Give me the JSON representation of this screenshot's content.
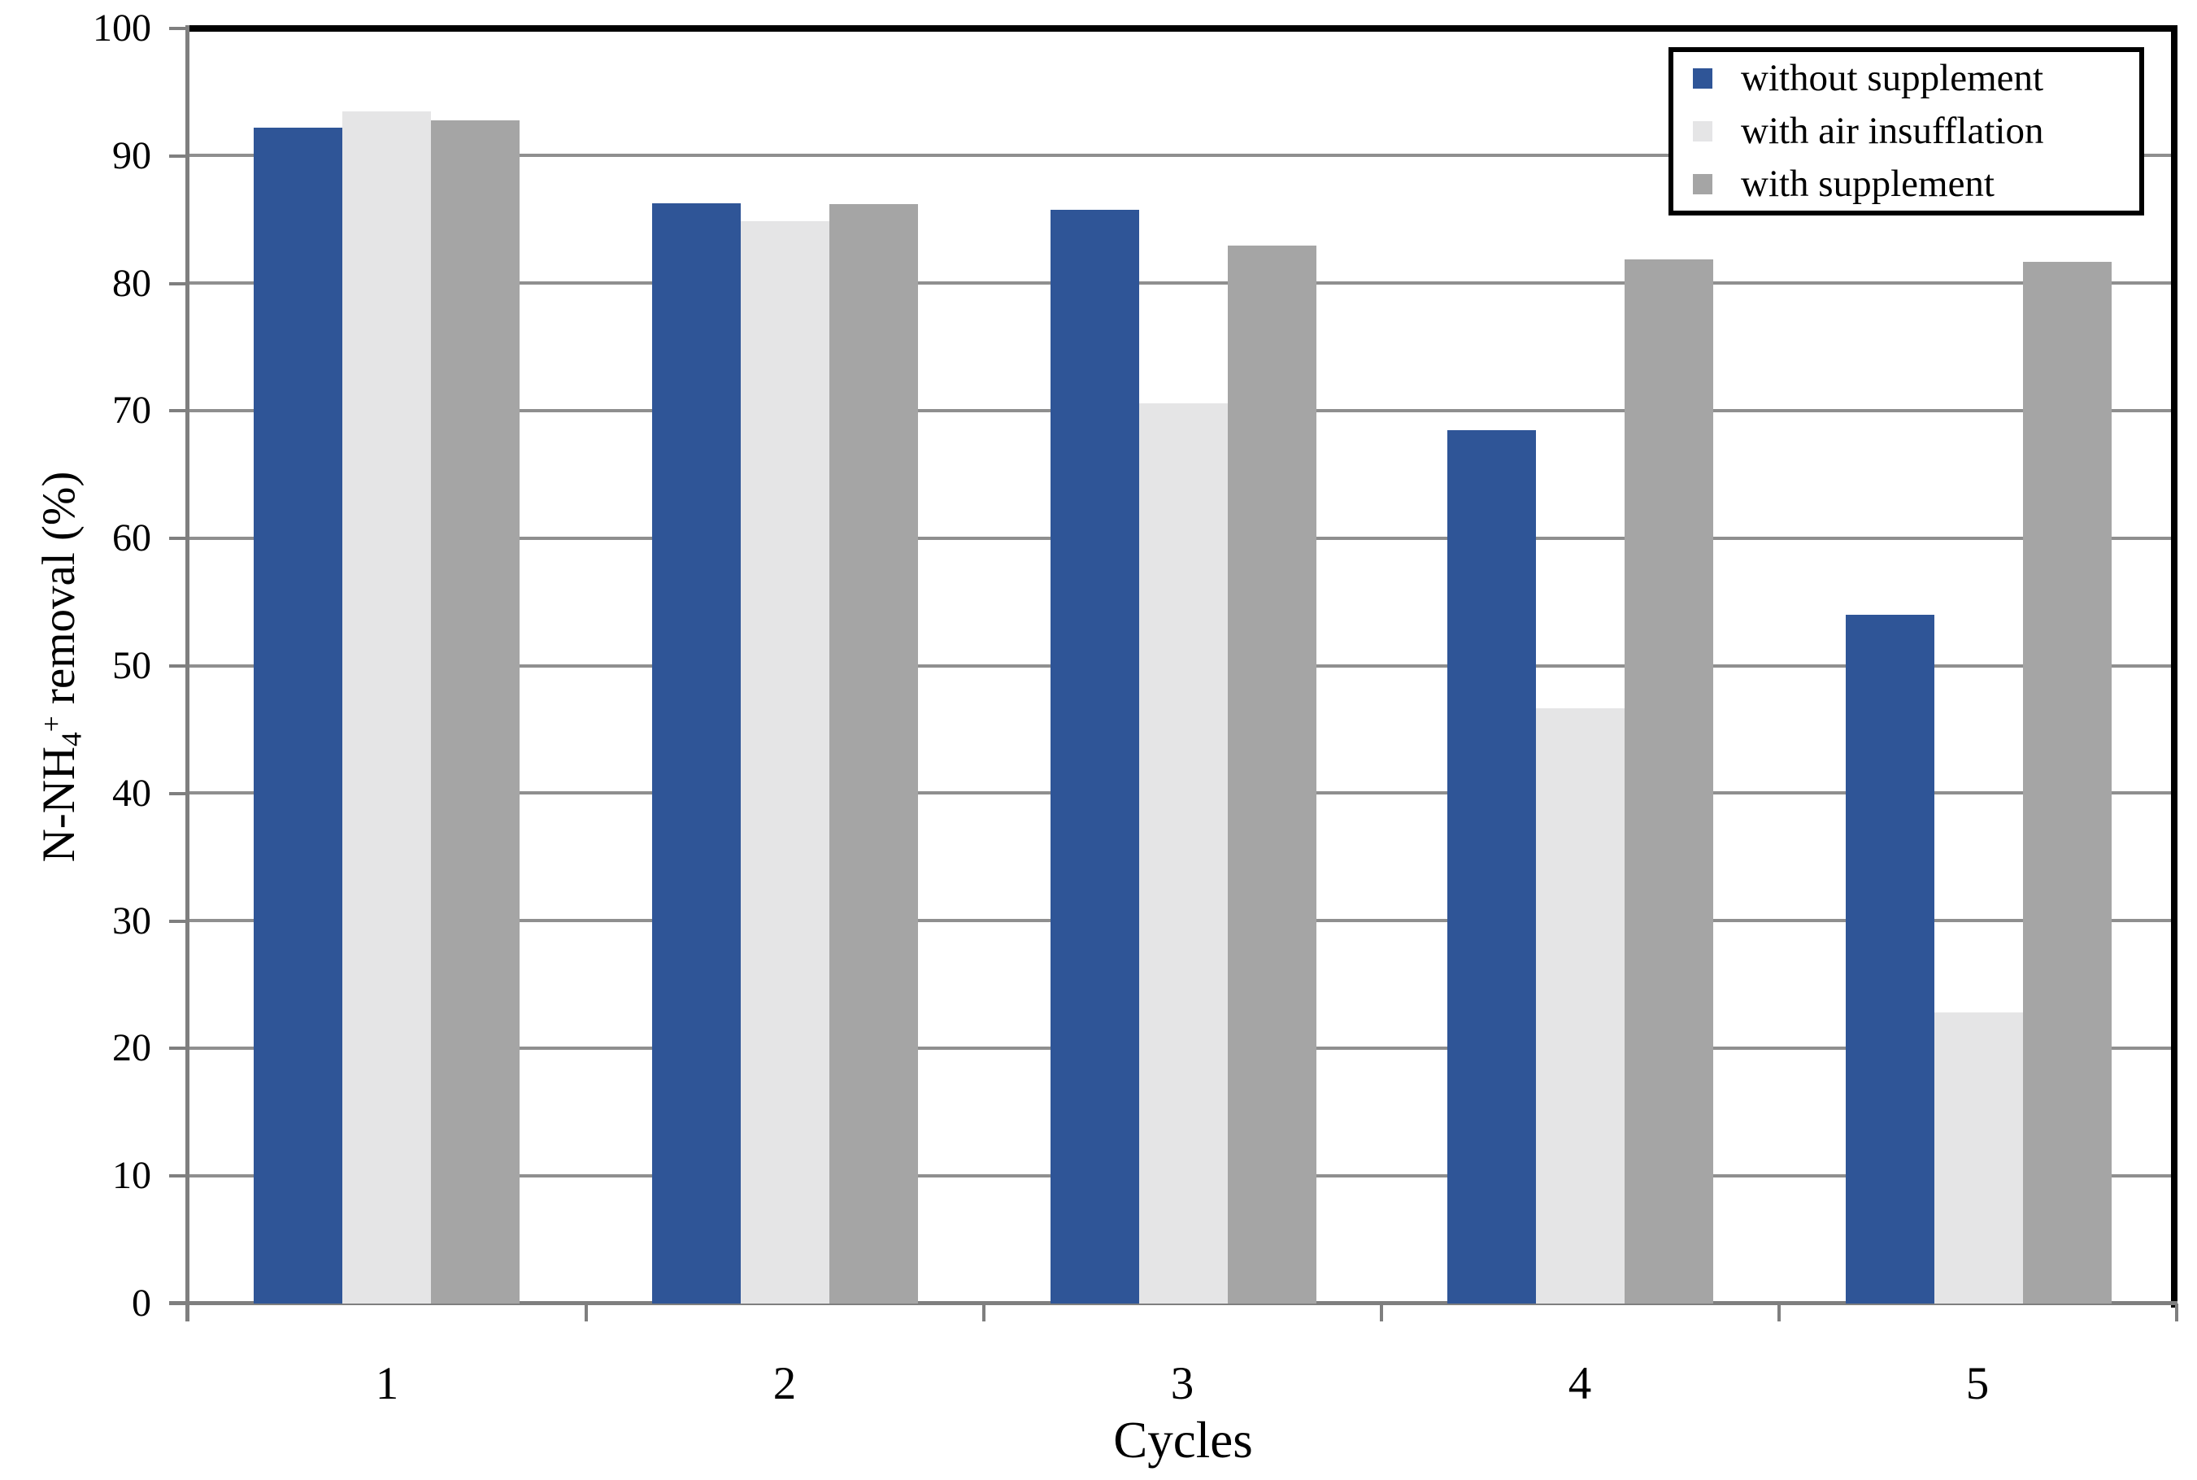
{
  "chart_data": {
    "type": "bar",
    "title": "",
    "xlabel": "Cycles",
    "ylabel": "N-NH4+ removal (%)",
    "ylabel_parts": {
      "prefix": "N-NH",
      "sub": "4",
      "sup": "+",
      "suffix": " removal (%)"
    },
    "categories": [
      "1",
      "2",
      "3",
      "4",
      "5"
    ],
    "series": [
      {
        "name": "without supplement",
        "color": "#2F5597",
        "values": [
          92.2,
          86.3,
          85.8,
          68.5,
          54.0
        ]
      },
      {
        "name": "with air insufflation",
        "color": "#E5E5E6",
        "values": [
          93.5,
          84.9,
          70.6,
          46.7,
          22.8
        ]
      },
      {
        "name": "with supplement",
        "color": "#A5A5A5",
        "values": [
          92.8,
          86.2,
          83.0,
          81.9,
          81.7
        ]
      }
    ],
    "ylim": [
      0,
      100
    ],
    "ytick_step": 10,
    "y_tick_labels": [
      "0",
      "10",
      "20",
      "30",
      "40",
      "50",
      "60",
      "70",
      "80",
      "90",
      "100"
    ],
    "grid": true,
    "legend_position": "top-right",
    "colors": {
      "grid": "#8f8f8f",
      "axis": "#7f7f7f",
      "plot_border": "#000000",
      "background": "#ffffff"
    }
  }
}
